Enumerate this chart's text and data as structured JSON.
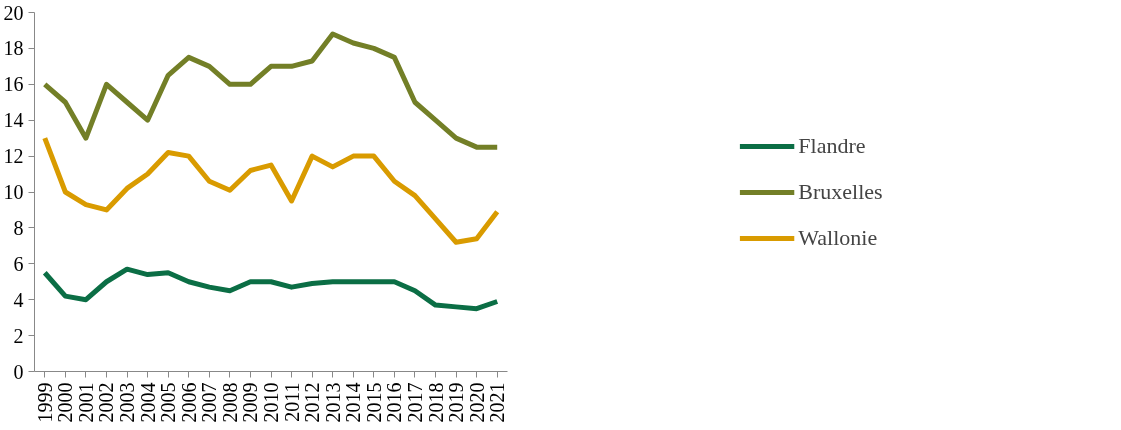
{
  "chart_data": {
    "type": "line",
    "categories": [
      "1999",
      "2000",
      "2001",
      "2002",
      "2003",
      "2004",
      "2005",
      "2006",
      "2007",
      "2008",
      "2009",
      "2010",
      "2011",
      "2012",
      "2013",
      "2014",
      "2015",
      "2016",
      "2017",
      "2018",
      "2019",
      "2020",
      "2021"
    ],
    "series": [
      {
        "name": "Flandre",
        "color": "#0b6e45",
        "values": [
          5.5,
          4.2,
          4.0,
          5.0,
          5.7,
          5.4,
          5.5,
          5.0,
          4.7,
          4.5,
          5.0,
          5.0,
          4.7,
          4.9,
          5.0,
          5.0,
          5.0,
          5.0,
          4.5,
          3.7,
          3.6,
          3.5,
          3.9
        ]
      },
      {
        "name": "Bruxelles",
        "color": "#737f27",
        "values": [
          16.0,
          15.0,
          13.0,
          16.0,
          15.0,
          14.0,
          16.5,
          17.5,
          17.0,
          16.0,
          16.0,
          17.0,
          17.0,
          17.3,
          18.8,
          18.3,
          18.0,
          17.5,
          15.0,
          14.0,
          13.0,
          12.5,
          12.5
        ]
      },
      {
        "name": "Wallonie",
        "color": "#d99b00",
        "values": [
          13.0,
          10.0,
          9.3,
          9.0,
          10.2,
          11.0,
          12.2,
          12.0,
          10.6,
          10.1,
          11.2,
          11.5,
          9.5,
          12.0,
          11.4,
          12.0,
          12.0,
          10.6,
          9.8,
          8.5,
          7.2,
          7.4,
          8.9
        ]
      }
    ],
    "ylim": [
      0,
      20
    ],
    "yticks": [
      0,
      2,
      4,
      6,
      8,
      10,
      12,
      14,
      16,
      18,
      20
    ],
    "grid": false,
    "legend": "right",
    "marker": "none",
    "line_style": "solid"
  }
}
